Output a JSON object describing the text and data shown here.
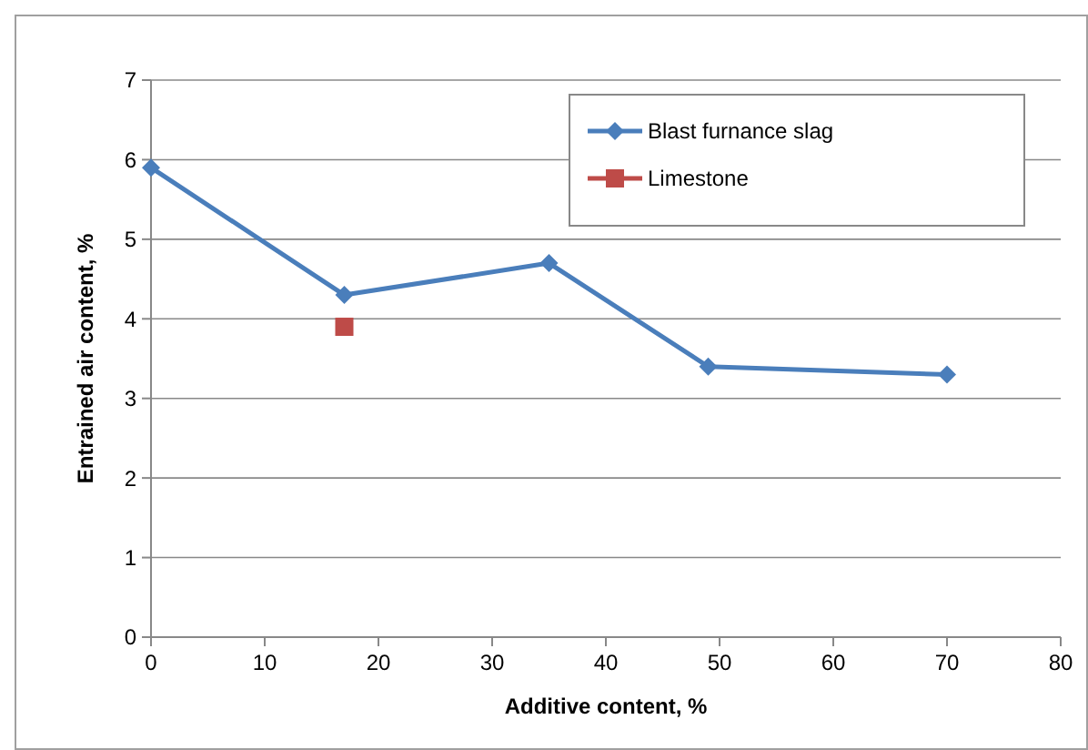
{
  "chart_data": {
    "type": "line",
    "xlabel": "Additive content, %",
    "ylabel": "Entrained air content, %",
    "xlim": [
      0,
      80
    ],
    "xticks": [
      0,
      10,
      20,
      30,
      40,
      50,
      60,
      70,
      80
    ],
    "ylim": [
      0,
      7
    ],
    "yticks": [
      0,
      1,
      2,
      3,
      4,
      5,
      6,
      7
    ],
    "grid": "y",
    "legend": "top right",
    "series": [
      {
        "name": "Blast furnance slag",
        "color": "#4a7ebb",
        "marker": "diamond",
        "x": [
          0,
          17,
          35,
          49,
          70
        ],
        "values": [
          5.9,
          4.3,
          4.7,
          3.4,
          3.3
        ]
      },
      {
        "name": "Limestone",
        "color": "#be4b48",
        "marker": "square",
        "x": [
          17
        ],
        "values": [
          3.9
        ]
      }
    ]
  }
}
